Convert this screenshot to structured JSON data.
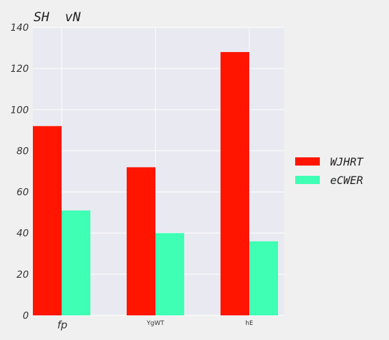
{
  "chart_data": {
    "type": "bar",
    "title": "SH  vN",
    "xlabel": "",
    "ylabel": "",
    "categories": [
      "fp",
      "YgWT",
      "hE"
    ],
    "series": [
      {
        "name": "WJHRT",
        "values": [
          92,
          72,
          128
        ],
        "color": "#ff1500"
      },
      {
        "name": "eCWER",
        "values": [
          51,
          40,
          36
        ],
        "color": "#3fffb4"
      }
    ],
    "ylim": [
      0,
      140
    ],
    "yticks": [
      "0",
      "20",
      "40",
      "60",
      "80",
      "100",
      "120",
      "140"
    ],
    "grid": true,
    "legend_position": "right",
    "plot_background": "#e9e9f1",
    "grid_color": "#ffffff"
  }
}
